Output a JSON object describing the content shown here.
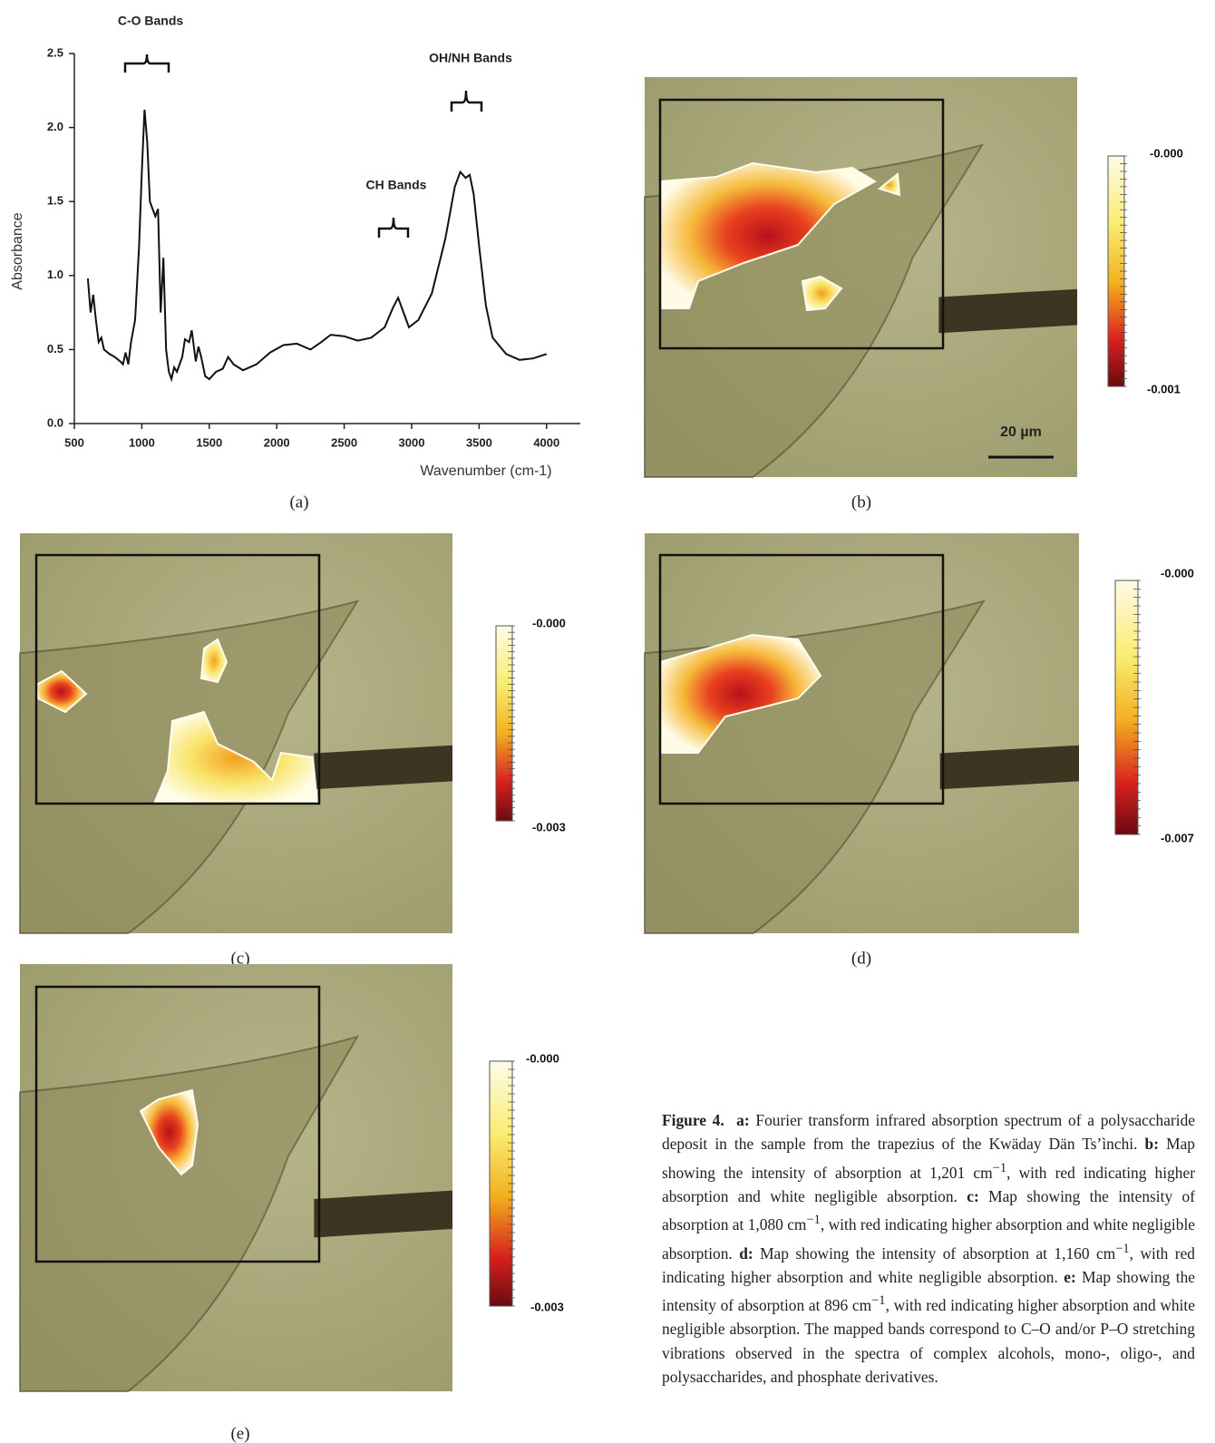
{
  "chart_data": {
    "type": "line",
    "color": "#111",
    "x_label": "Wavenumber (cm-1)",
    "y_label": "Absorbance",
    "annotations": [
      "C-O Bands",
      "CH Bands",
      "OH/NH Bands"
    ],
    "xlim": [
      500,
      4250
    ],
    "ylim": [
      0,
      2.5
    ],
    "xticks": [
      500,
      1000,
      1500,
      2000,
      2500,
      3000,
      3500,
      4000
    ],
    "yticks": [
      {
        "value": 0,
        "label": "0.0"
      },
      0.5,
      {
        "value": 1,
        "label": "1.0"
      },
      1.5,
      {
        "value": 2,
        "label": "2.0"
      },
      2.5
    ],
    "x": [
      600,
      620,
      640,
      660,
      680,
      700,
      720,
      760,
      800,
      840,
      860,
      880,
      900,
      920,
      950,
      980,
      1000,
      1020,
      1040,
      1060,
      1080,
      1100,
      1120,
      1140,
      1160,
      1180,
      1200,
      1220,
      1240,
      1260,
      1300,
      1320,
      1350,
      1370,
      1400,
      1420,
      1440,
      1470,
      1500,
      1550,
      1600,
      1640,
      1680,
      1750,
      1850,
      1950,
      2050,
      2150,
      2250,
      2330,
      2400,
      2500,
      2600,
      2700,
      2800,
      2860,
      2900,
      2940,
      2980,
      3050,
      3150,
      3250,
      3320,
      3360,
      3400,
      3430,
      3460,
      3500,
      3550,
      3600,
      3700,
      3800,
      3900,
      4000
    ],
    "values": [
      0.98,
      0.75,
      0.87,
      0.7,
      0.55,
      0.58,
      0.5,
      0.47,
      0.45,
      0.42,
      0.4,
      0.48,
      0.4,
      0.55,
      0.7,
      1.2,
      1.7,
      2.12,
      1.9,
      1.5,
      1.45,
      1.4,
      1.45,
      0.75,
      1.12,
      0.5,
      0.35,
      0.3,
      0.38,
      0.35,
      0.45,
      0.57,
      0.55,
      0.63,
      0.42,
      0.52,
      0.45,
      0.32,
      0.3,
      0.35,
      0.37,
      0.45,
      0.4,
      0.36,
      0.4,
      0.48,
      0.53,
      0.54,
      0.5,
      0.55,
      0.6,
      0.59,
      0.56,
      0.58,
      0.65,
      0.78,
      0.85,
      0.75,
      0.65,
      0.7,
      0.88,
      1.25,
      1.6,
      1.7,
      1.66,
      1.68,
      1.55,
      1.2,
      0.8,
      0.58,
      0.47,
      0.43,
      0.44,
      0.47
    ]
  },
  "panels": {
    "labels": [
      "(a)",
      "(b)",
      "(c)",
      "(d)",
      "(e)"
    ],
    "scale_bar": "20 µm",
    "colorbars": [
      [
        "-0.000",
        "-0.001"
      ],
      [
        "-0.000",
        "-0.003"
      ],
      [
        "-0.000",
        "-0.007"
      ],
      [
        "-0.000",
        "-0.003"
      ]
    ]
  },
  "caption": {
    "label": "Figure 4.",
    "parts": [
      {
        "key": "a:",
        "text": [
          "Fourier transform infrared absorption spectrum of a polysaccharide deposit in the sample from the trapezius of the Kwäday Dän Ts’ìnchi."
        ]
      },
      {
        "key": "b:",
        "text": [
          "Map showing the intensity of absorption at 1,201 cm",
          "−1",
          ", with red indicating higher absorption and white negligible absorption."
        ]
      },
      {
        "key": "c:",
        "text": [
          "Map showing the intensity of absorption at 1,080 cm",
          "−1",
          ", with red indicating higher absorption and white negligible absorption."
        ]
      },
      {
        "key": "d:",
        "text": [
          "Map showing the intensity of absorption at 1,160 cm",
          "−1",
          ", with red indicating higher absorption and white negligible absorption."
        ]
      },
      {
        "key": "e:",
        "text": [
          "Map showing the intensity of absorption at 896 cm",
          "−1",
          ", with red indicating higher absorption and white negligible absorption. The mapped bands correspond to C–O and/or P–O stretching vibrations observed in the spectra of complex alcohols, mono-, oligo-, and polysaccharides, and phosphate derivatives."
        ]
      }
    ]
  }
}
